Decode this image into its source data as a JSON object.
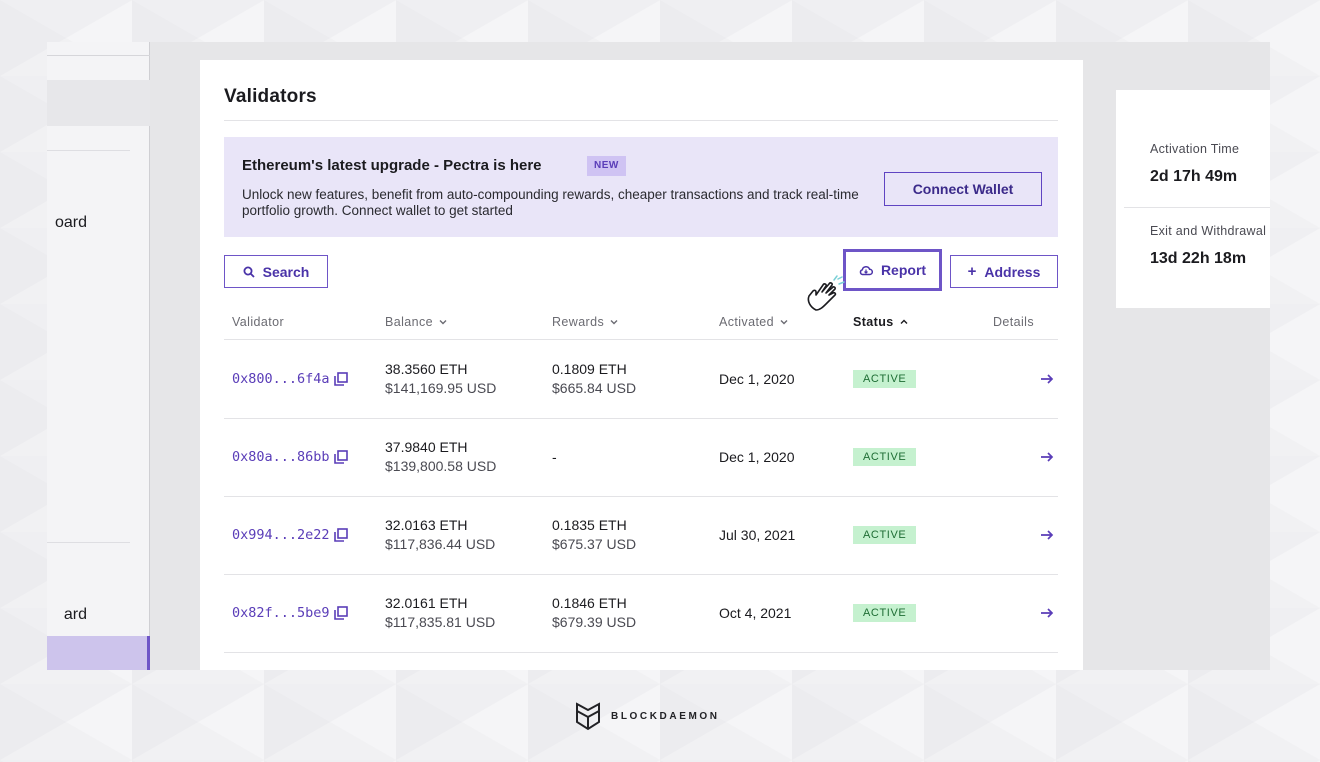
{
  "sidebar": {
    "item_upper": "oard",
    "item_lower": "ard"
  },
  "main": {
    "title": "Validators",
    "banner": {
      "title": "Ethereum's latest upgrade - Pectra is here",
      "badge": "NEW",
      "text": "Unlock new features, benefit from auto-compounding rewards, cheaper transactions and track real-time portfolio growth. Connect wallet to get started",
      "connect_label": "Connect Wallet"
    },
    "toolbar": {
      "search_label": "Search",
      "report_label": "Report",
      "address_label": "Address"
    },
    "table": {
      "headers": {
        "validator": "Validator",
        "balance": "Balance",
        "rewards": "Rewards",
        "activated": "Activated",
        "status": "Status",
        "details": "Details"
      },
      "rows": [
        {
          "address": "0x800...6f4a",
          "balance_eth": "38.3560 ETH",
          "balance_usd": "$141,169.95 USD",
          "rewards_eth": "0.1809 ETH",
          "rewards_usd": "$665.84 USD",
          "activated": "Dec 1, 2020",
          "status": "ACTIVE"
        },
        {
          "address": "0x80a...86bb",
          "balance_eth": "37.9840 ETH",
          "balance_usd": "$139,800.58 USD",
          "rewards_eth": "-",
          "rewards_usd": "",
          "activated": "Dec 1, 2020",
          "status": "ACTIVE"
        },
        {
          "address": "0x994...2e22",
          "balance_eth": "32.0163 ETH",
          "balance_usd": "$117,836.44 USD",
          "rewards_eth": "0.1835 ETH",
          "rewards_usd": "$675.37 USD",
          "activated": "Jul 30, 2021",
          "status": "ACTIVE"
        },
        {
          "address": "0x82f...5be9",
          "balance_eth": "32.0161 ETH",
          "balance_usd": "$117,835.81 USD",
          "rewards_eth": "0.1846 ETH",
          "rewards_usd": "$679.39 USD",
          "activated": "Oct 4, 2021",
          "status": "ACTIVE"
        }
      ]
    }
  },
  "right_panel": {
    "activation_label": "Activation Time",
    "activation_value": "2d 17h 49m",
    "exit_label": "Exit and Withdrawal",
    "exit_value": "13d 22h 18m"
  },
  "footer": {
    "brand": "BLOCKDAEMON"
  },
  "colors": {
    "accent": "#6e55c7",
    "banner_bg": "#e9e5f8",
    "status_bg": "#c5f1cf"
  }
}
